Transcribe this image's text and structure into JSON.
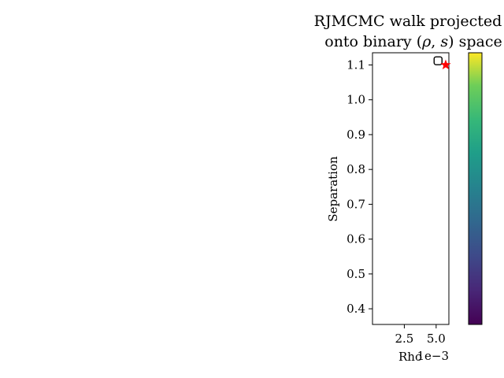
{
  "chart_data": {
    "type": "scatter",
    "title_line1": "RJMCMC walk projected",
    "title_line2_prefix": "onto binary (",
    "title_rho": "ρ",
    "title_sep": ", ",
    "title_s": "s",
    "title_line2_suffix": ") space",
    "xlabel": "Rho",
    "ylabel": "Separation",
    "x_offset_text": "1e−3",
    "xlim": [
      0.0,
      6.0
    ],
    "ylim": [
      0.355,
      1.135
    ],
    "xticks": [
      {
        "value": 2.5,
        "label": "2.5"
      },
      {
        "value": 5.0,
        "label": "5.0"
      }
    ],
    "yticks": [
      {
        "value": 0.4,
        "label": "0.4"
      },
      {
        "value": 0.5,
        "label": "0.5"
      },
      {
        "value": 0.6,
        "label": "0.6"
      },
      {
        "value": 0.7,
        "label": "0.7"
      },
      {
        "value": 0.8,
        "label": "0.8"
      },
      {
        "value": 0.9,
        "label": "0.9"
      },
      {
        "value": 1.0,
        "label": "1.0"
      },
      {
        "value": 1.1,
        "label": "1.1"
      }
    ],
    "walk_points": [
      {
        "x": 5.15,
        "y": 1.112
      }
    ],
    "true_point": {
      "x": 5.75,
      "y": 1.1
    },
    "colors": {
      "true_marker": "#ff0000",
      "walk_marker_edge": "#000000",
      "colorbar_top": "#fde725",
      "colorbar_bottom": "#440154"
    },
    "colorbar": {
      "cmap": "viridis",
      "ticks": []
    },
    "grid": false
  }
}
